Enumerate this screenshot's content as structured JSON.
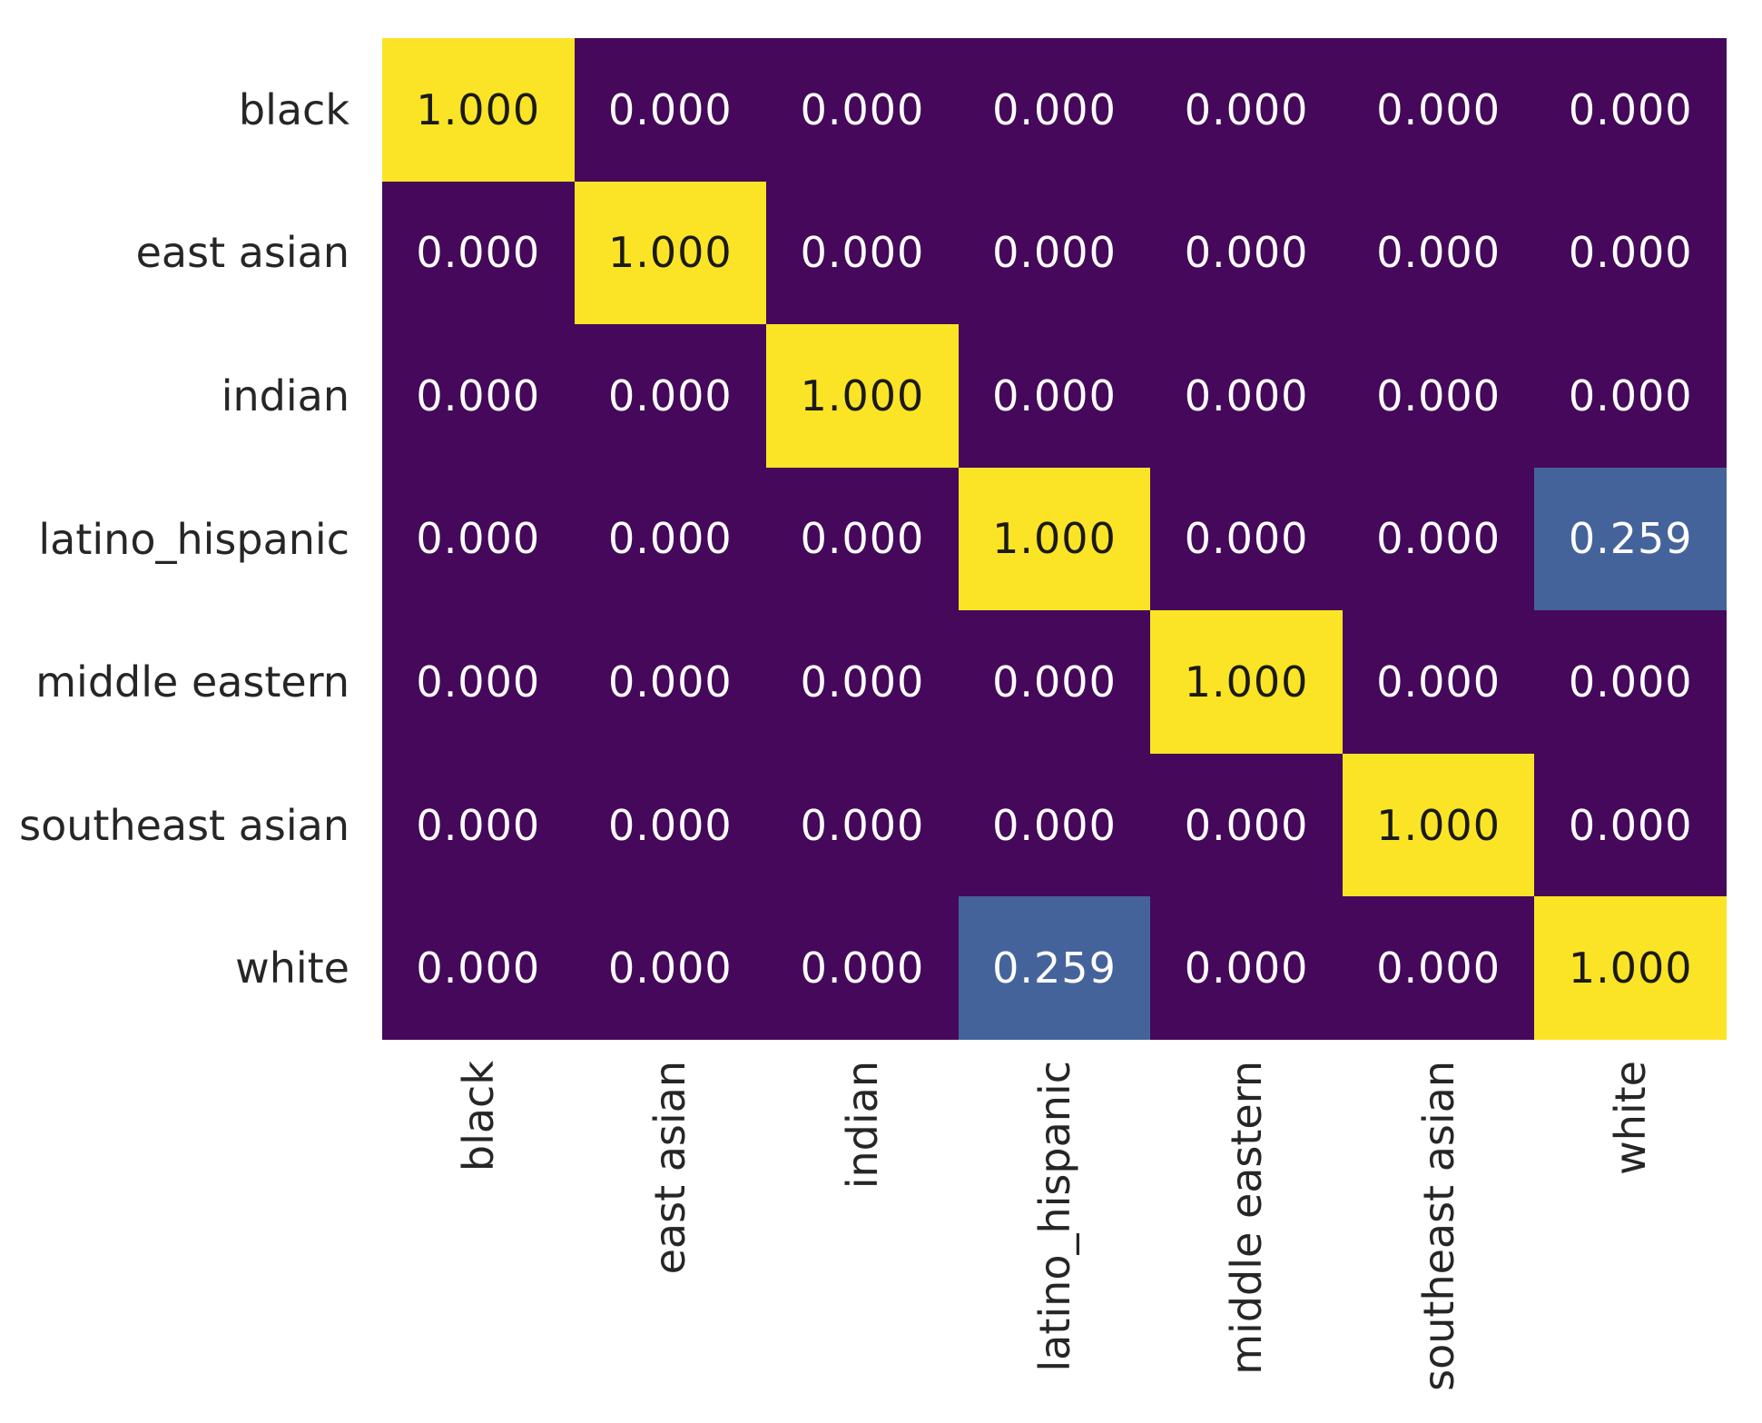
{
  "figure": {
    "background": "#ffffff"
  },
  "chart_data": {
    "type": "heatmap",
    "title": "",
    "xlabel": "",
    "ylabel": "",
    "categories": [
      "black",
      "east asian",
      "indian",
      "latino_hispanic",
      "middle eastern",
      "southeast asian",
      "white"
    ],
    "x_tick_labels": [
      "black",
      "east asian",
      "indian",
      "latino_hispanic",
      "middle eastern",
      "southeast asian",
      "white"
    ],
    "y_tick_labels": [
      "black",
      "east asian",
      "indian",
      "latino_hispanic",
      "middle eastern",
      "southeast asian",
      "white"
    ],
    "matrix": [
      [
        1,
        0,
        0,
        0,
        0,
        0,
        0
      ],
      [
        0,
        1,
        0,
        0,
        0,
        0,
        0
      ],
      [
        0,
        0,
        1,
        0,
        0,
        0,
        0
      ],
      [
        0,
        0,
        0,
        1,
        0,
        0,
        0.259
      ],
      [
        0,
        0,
        0,
        0,
        1,
        0,
        0
      ],
      [
        0,
        0,
        0,
        0,
        0,
        1,
        0
      ],
      [
        0,
        0,
        0,
        0.259,
        0,
        0,
        1
      ]
    ],
    "matrix_labels": [
      [
        "1.000",
        "0.000",
        "0.000",
        "0.000",
        "0.000",
        "0.000",
        "0.000"
      ],
      [
        "0.000",
        "1.000",
        "0.000",
        "0.000",
        "0.000",
        "0.000",
        "0.000"
      ],
      [
        "0.000",
        "0.000",
        "1.000",
        "0.000",
        "0.000",
        "0.000",
        "0.000"
      ],
      [
        "0.000",
        "0.000",
        "0.000",
        "1.000",
        "0.000",
        "0.000",
        "0.259"
      ],
      [
        "0.000",
        "0.000",
        "0.000",
        "0.000",
        "1.000",
        "0.000",
        "0.000"
      ],
      [
        "0.000",
        "0.000",
        "0.000",
        "0.000",
        "0.000",
        "1.000",
        "0.000"
      ],
      [
        "0.000",
        "0.000",
        "0.000",
        "0.259",
        "0.000",
        "0.000",
        "1.000"
      ]
    ],
    "value_decimals": 3,
    "colormap": "viridis",
    "vmin": 0,
    "vmax": 1,
    "cell_colors": {
      "0": "#45085A",
      "0.259": "#45639B",
      "1": "#FBE426"
    },
    "annot_text_light": "#FFFFFF",
    "annot_text_dark": "#1A1A1A",
    "tick_label_color": "#262626",
    "x_tick_rotation_deg": 90,
    "grid": false,
    "legend": false,
    "colorbar": false
  }
}
